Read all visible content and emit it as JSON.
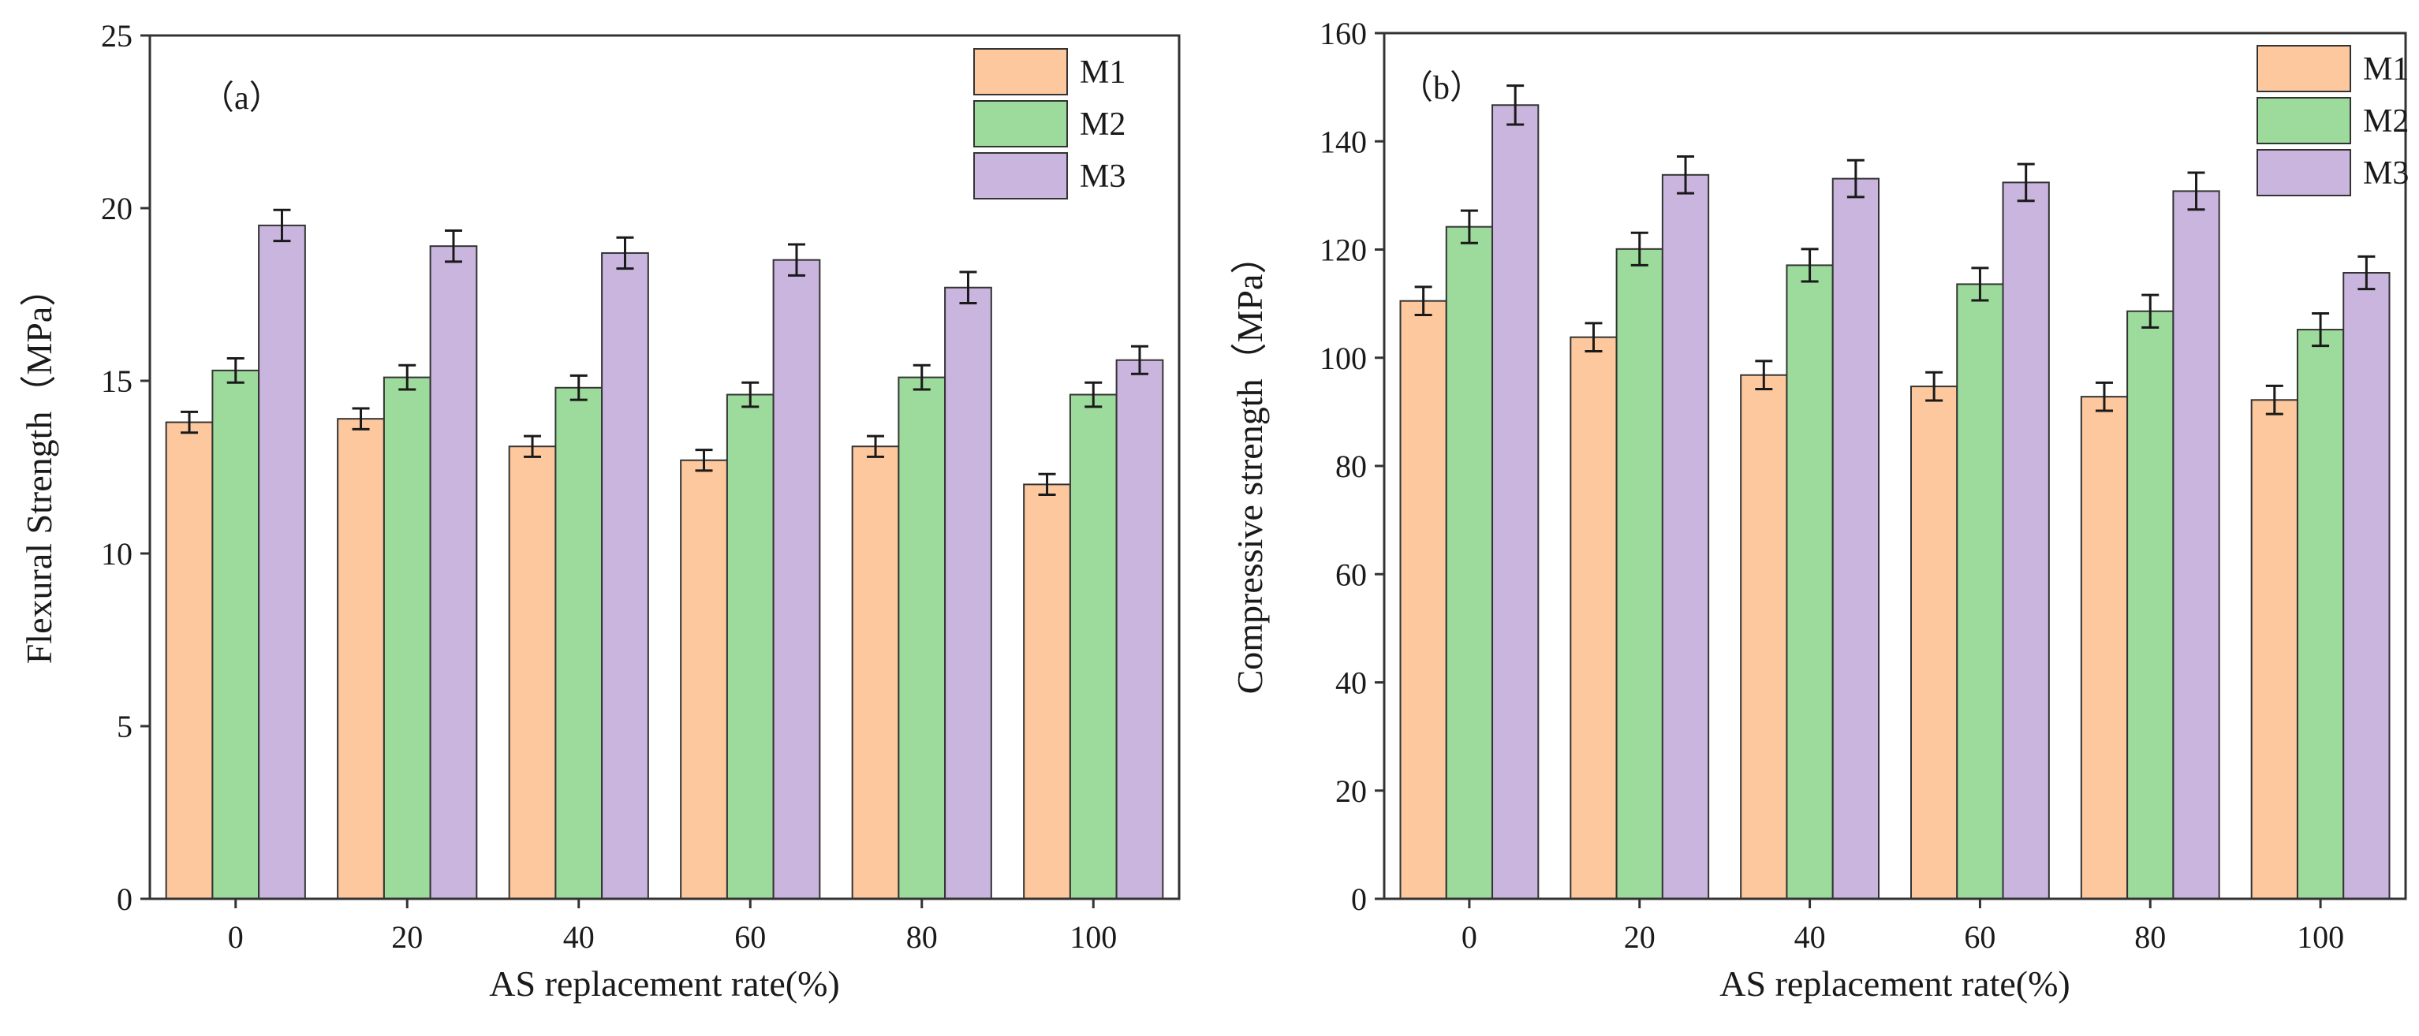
{
  "chart_data": [
    {
      "type": "bar",
      "panel_label": "（a）",
      "categories": [
        "0",
        "20",
        "40",
        "60",
        "80",
        "100"
      ],
      "xlabel": "AS replacement rate(%)",
      "ylabel": "Flexural Strength（MPa）",
      "ylim": [
        0,
        25
      ],
      "yticks": [
        "0",
        "5",
        "10",
        "15",
        "20",
        "25"
      ],
      "legend_position": "top-right",
      "series": [
        {
          "name": "M1",
          "color": "#fdc89e",
          "values": [
            13.8,
            13.9,
            13.1,
            12.7,
            13.1,
            12.0
          ],
          "errors": [
            0.3,
            0.3,
            0.3,
            0.3,
            0.3,
            0.3
          ]
        },
        {
          "name": "M2",
          "color": "#9ddb9c",
          "values": [
            15.3,
            15.1,
            14.8,
            14.6,
            15.1,
            14.6
          ],
          "errors": [
            0.35,
            0.35,
            0.35,
            0.35,
            0.35,
            0.35
          ]
        },
        {
          "name": "M3",
          "color": "#c9b5de",
          "values": [
            19.5,
            18.9,
            18.7,
            18.5,
            17.7,
            15.6
          ],
          "errors": [
            0.45,
            0.45,
            0.45,
            0.45,
            0.45,
            0.4
          ]
        }
      ]
    },
    {
      "type": "bar",
      "panel_label": "（b）",
      "categories": [
        "0",
        "20",
        "40",
        "60",
        "80",
        "100"
      ],
      "xlabel": "AS replacement rate(%)",
      "ylabel": "Compressive strength（MPa）",
      "ylim": [
        0,
        160
      ],
      "yticks": [
        "0",
        "20",
        "40",
        "60",
        "80",
        "100",
        "120",
        "140",
        "160"
      ],
      "legend_position": "top-right",
      "series": [
        {
          "name": "M1",
          "color": "#fdc89e",
          "values": [
            110.5,
            103.8,
            96.8,
            94.7,
            92.8,
            92.2
          ],
          "errors": [
            2.6,
            2.6,
            2.6,
            2.6,
            2.6,
            2.6
          ]
        },
        {
          "name": "M2",
          "color": "#9ddb9c",
          "values": [
            124.2,
            120.1,
            117.1,
            113.6,
            108.6,
            105.2
          ],
          "errors": [
            3.0,
            3.0,
            3.0,
            3.0,
            3.0,
            3.0
          ]
        },
        {
          "name": "M3",
          "color": "#c9b5de",
          "values": [
            146.7,
            133.8,
            133.1,
            132.4,
            130.8,
            115.7
          ],
          "errors": [
            3.6,
            3.4,
            3.4,
            3.4,
            3.4,
            3.0
          ]
        }
      ]
    }
  ]
}
